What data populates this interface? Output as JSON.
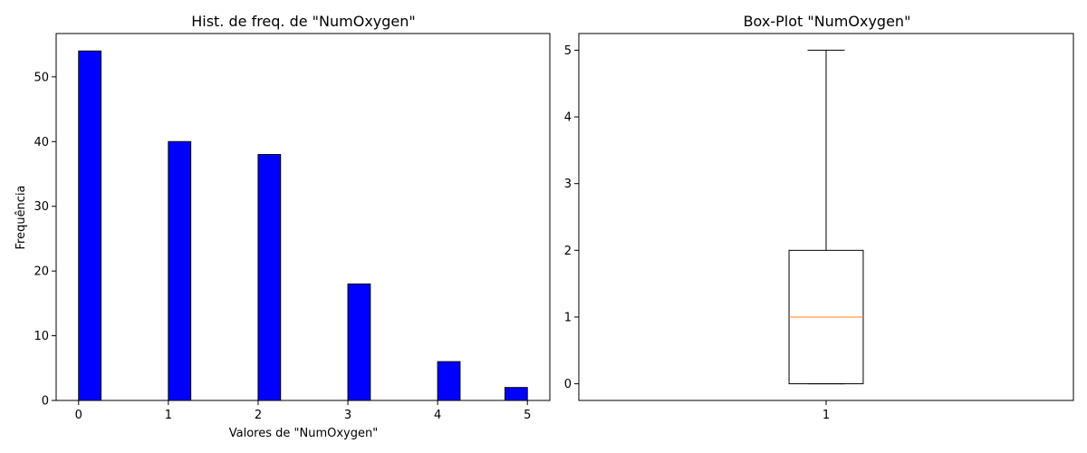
{
  "chart_data": [
    {
      "type": "bar",
      "title": "Hist. de freq. de \"NumOxygen\"",
      "xlabel": "Valores de \"NumOxygen\"",
      "ylabel": "Frequência",
      "x": [
        0,
        1,
        2,
        3,
        4,
        5
      ],
      "values": [
        54,
        40,
        38,
        18,
        6,
        2
      ],
      "bin_width": 0.25,
      "bin_starts": [
        0,
        1,
        2,
        3,
        4,
        4.75
      ],
      "xlim": [
        -0.25,
        5.25
      ],
      "ylim": [
        0,
        56.7
      ],
      "xticks": [
        0,
        1,
        2,
        3,
        4,
        5
      ],
      "yticks": [
        0,
        10,
        20,
        30,
        40,
        50
      ],
      "bar_color": "#0000ff",
      "edge_color": "#000000",
      "grid": false
    },
    {
      "type": "box",
      "title": "Box-Plot \"NumOxygen\"",
      "categories": [
        "1"
      ],
      "box": {
        "whisker_low": 0,
        "q1": 0,
        "median": 1,
        "q3": 2,
        "whisker_high": 5
      },
      "xlim": [
        0.5,
        1.5
      ],
      "ylim": [
        -0.25,
        5.25
      ],
      "yticks": [
        0,
        1,
        2,
        3,
        4,
        5
      ],
      "median_color": "#ff7f0e",
      "grid": false
    }
  ]
}
